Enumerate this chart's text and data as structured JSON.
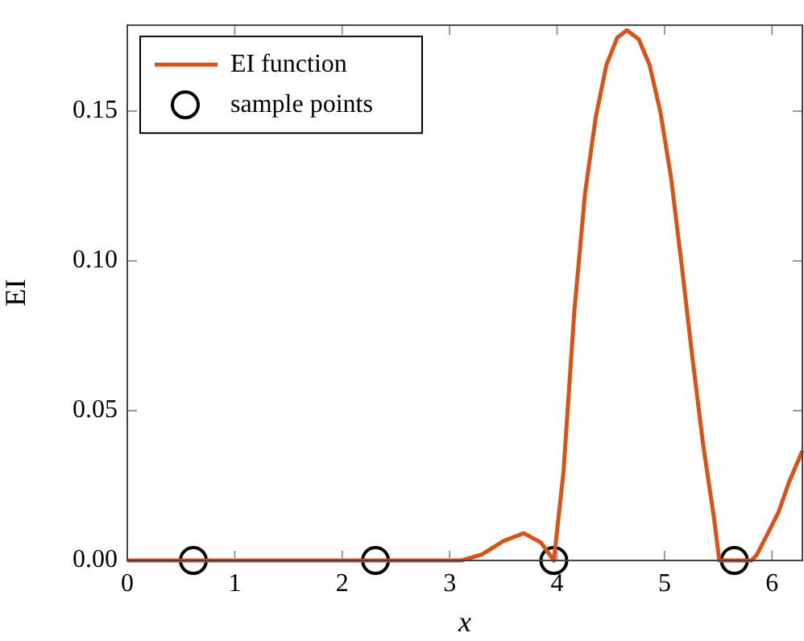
{
  "chart_data": {
    "type": "line",
    "xlabel": "x",
    "ylabel": "EI",
    "xlim": [
      0,
      6.283
    ],
    "xticks": [
      0,
      1,
      2,
      3,
      4,
      5,
      6
    ],
    "ylim": [
      0,
      0.1787
    ],
    "yticks": [
      {
        "value": 0,
        "label": "0.00"
      },
      {
        "value": 0.05,
        "label": "0.05"
      },
      {
        "value": 0.1,
        "label": "0.10"
      },
      {
        "value": 0.15,
        "label": "0.15"
      }
    ],
    "grid": false,
    "legend": "top left",
    "series": [
      {
        "name": "EI function",
        "type": "line",
        "color": "#d95319",
        "marker": "none",
        "x": [
          0,
          1,
          2,
          3,
          3.11,
          3.3,
          3.5,
          3.69,
          3.85,
          3.97,
          4.06,
          4.16,
          4.26,
          4.36,
          4.46,
          4.56,
          4.65,
          4.76,
          4.86,
          4.96,
          5.06,
          5.16,
          5.26,
          5.36,
          5.46,
          5.51,
          5.65,
          5.81,
          5.86,
          5.96,
          6.06,
          6.16,
          6.283
        ],
        "values": [
          0,
          0,
          0,
          0,
          0,
          0.002,
          0.0065,
          0.0091,
          0.006,
          0,
          0.0297,
          0.083,
          0.1225,
          0.148,
          0.1655,
          0.1745,
          0.177,
          0.174,
          0.1655,
          0.15,
          0.128,
          0.0985,
          0.0675,
          0.0385,
          0.0143,
          0,
          0,
          0,
          0.002,
          0.009,
          0.016,
          0.0263,
          0.0366
        ]
      },
      {
        "name": "sample points",
        "type": "scatter",
        "color": "#000000",
        "marker": "circle",
        "x": [
          0.615,
          2.31,
          3.97,
          5.65
        ],
        "values": [
          0,
          0,
          0,
          0
        ]
      }
    ]
  }
}
